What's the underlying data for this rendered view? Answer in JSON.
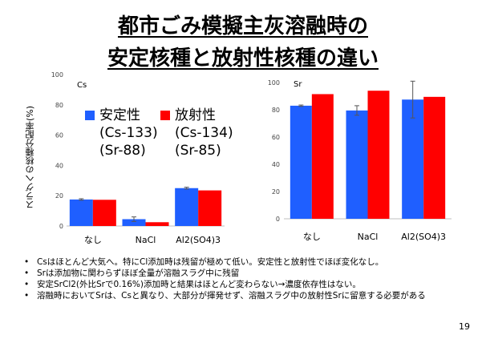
{
  "title_line1": "都市ごみ模擬主灰溶融時の",
  "title_line2": "安定核種と放射性核種の違い",
  "y_axis_label": "スラグへの核種分配率(%)",
  "legend": {
    "stable_label": "安定性",
    "radioactive_label": "放射性",
    "stable_iso1": "(Cs-133)",
    "stable_iso2": "(Sr-88)",
    "radio_iso1": "(Cs-134)",
    "radio_iso2": "(Sr-85)",
    "stable_color": "#1F5FFF",
    "radioactive_color": "#FF0000"
  },
  "chart_data": [
    {
      "type": "bar",
      "panel_label": "Cs",
      "categories": [
        "なし",
        "NaCl",
        "Al2(SO4)3"
      ],
      "ylim": [
        0,
        100
      ],
      "yticks": [
        "0",
        "20",
        "40",
        "60",
        "80",
        "100"
      ],
      "series": [
        {
          "name": "安定性",
          "values": [
            17.5,
            4.5,
            25
          ],
          "errors": [
            0.5,
            1.5,
            0.6
          ]
        },
        {
          "name": "放射性",
          "values": [
            17.3,
            2.5,
            23.5
          ],
          "errors": [
            0,
            0,
            0
          ]
        }
      ]
    },
    {
      "type": "bar",
      "panel_label": "Sr",
      "categories": [
        "なし",
        "NaCl",
        "Al2(SO4)3"
      ],
      "ylim": [
        0,
        100
      ],
      "yticks": [
        "0",
        "20",
        "40",
        "60",
        "80",
        "100"
      ],
      "series": [
        {
          "name": "安定性",
          "values": [
            83,
            79.5,
            87.5
          ],
          "errors": [
            0.5,
            3.5,
            13.5
          ]
        },
        {
          "name": "放射性",
          "values": [
            91.5,
            94,
            89.5
          ],
          "errors": [
            0,
            0,
            0
          ]
        }
      ]
    }
  ],
  "bullets": [
    "Csはほとんど大気へ。特にCl添加時は残留が極めて低い。安定性と放射性でほぼ変化なし。",
    "Srは添加物に関わらずほぼ全量が溶融スラグ中に残留",
    "安定SrCl2(外比Srで0.16%)添加時と結果はほとんど変わらない→濃度依存性はない。",
    "溶融時においてSrは、Csと異なり、大部分が揮発せず、溶融スラグ中の放射性Srに留意する必要がある"
  ],
  "page_number": "19"
}
